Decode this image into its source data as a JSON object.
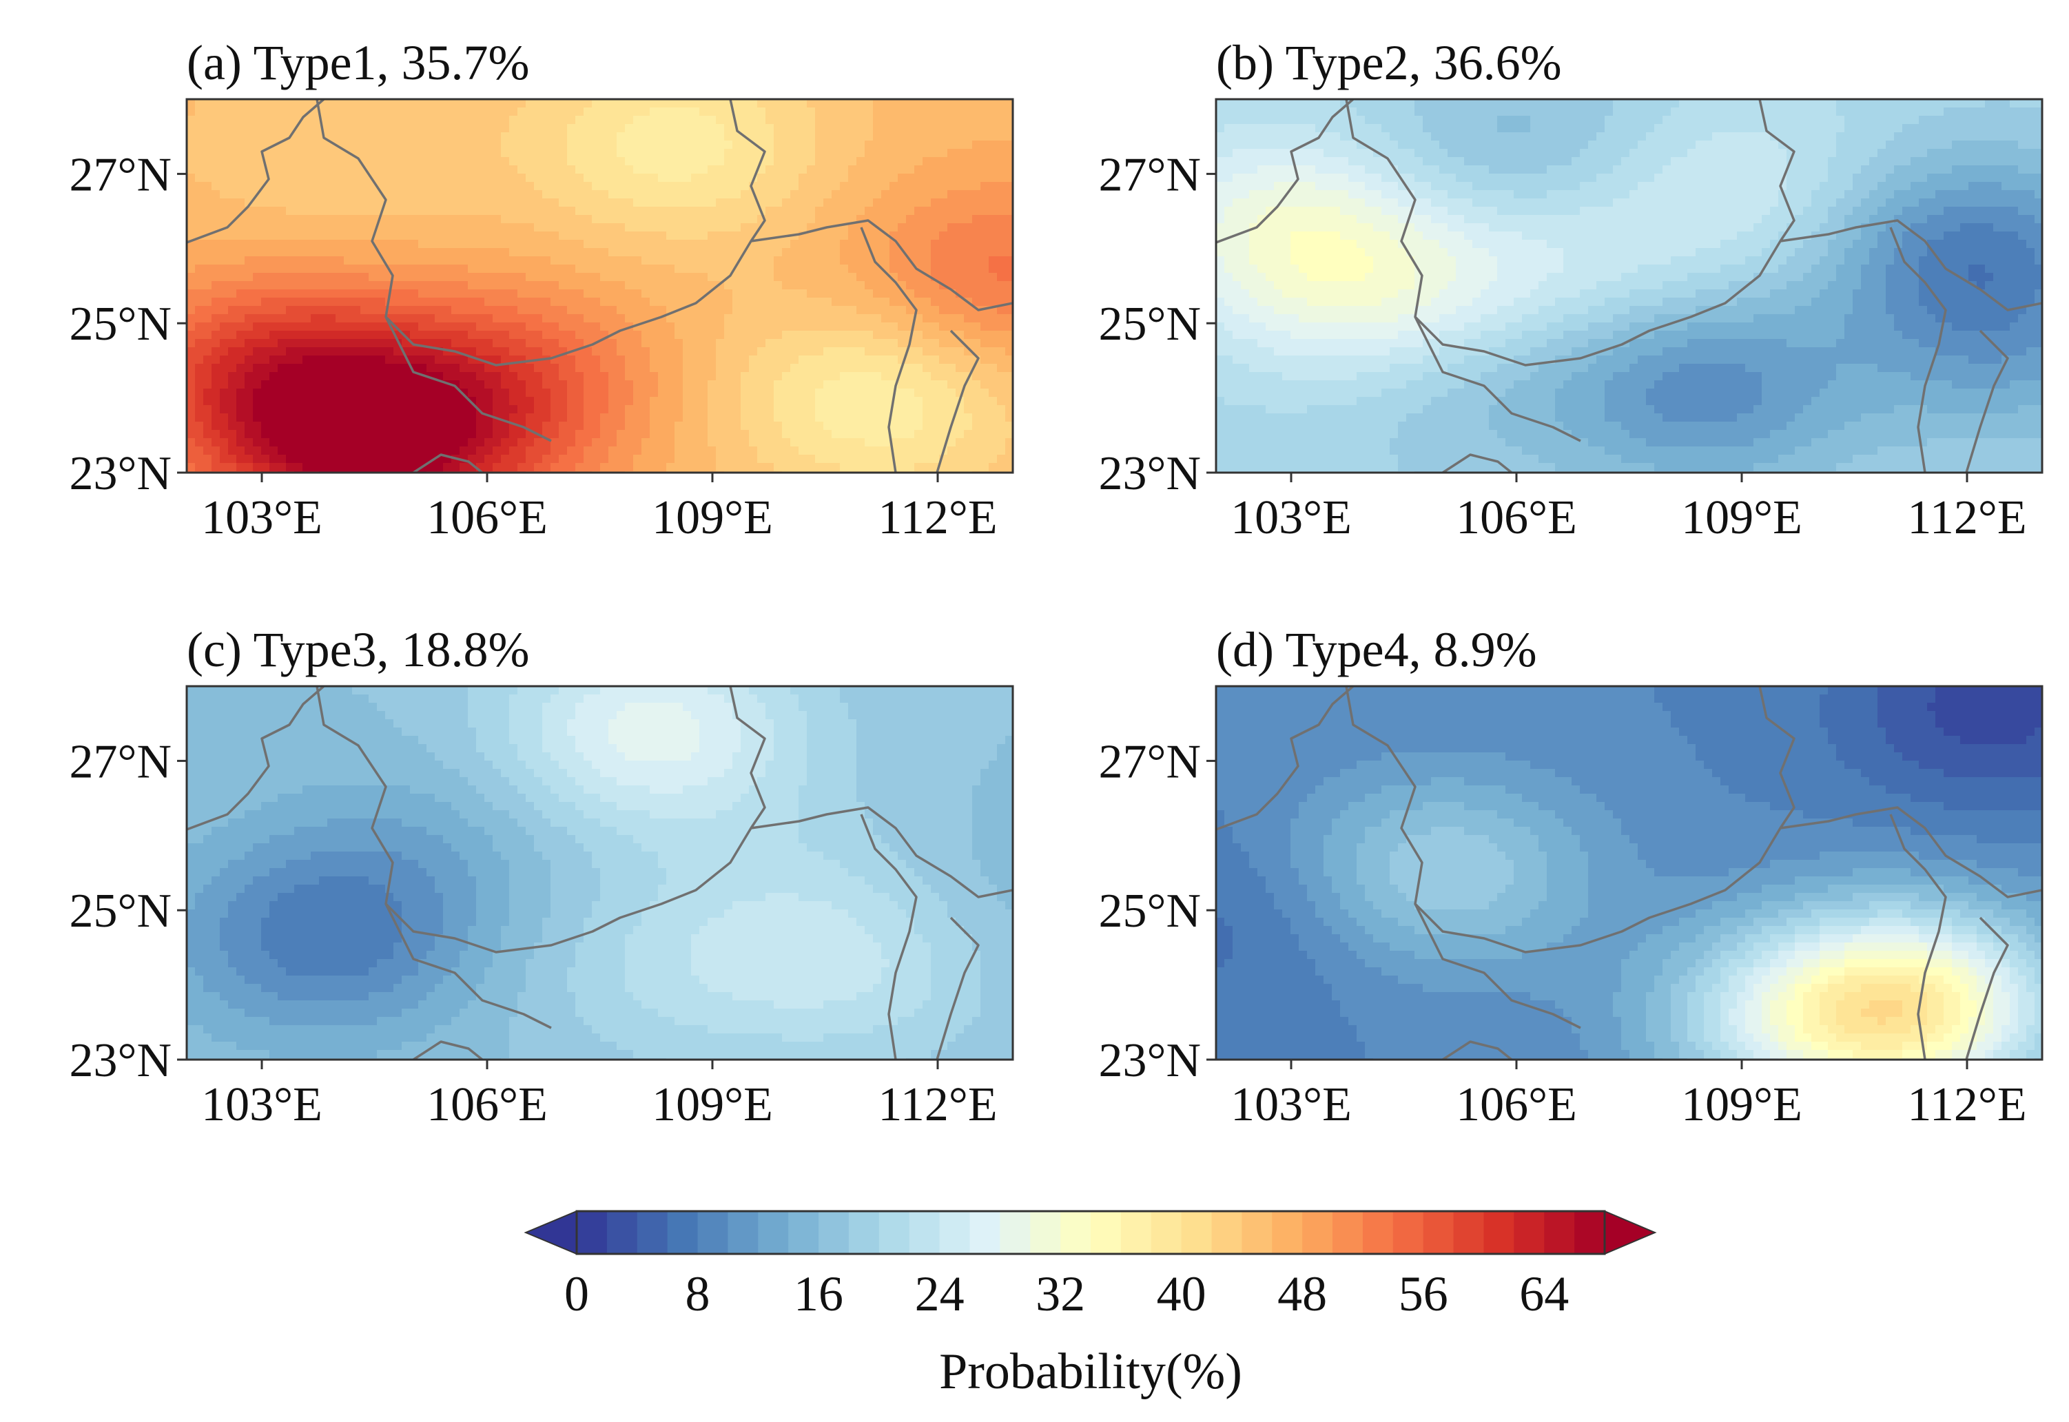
{
  "chart_data": [
    {
      "id": "a",
      "type": "heatmap",
      "title": "(a) Type1, 35.7%",
      "x_ticks": [
        "103°E",
        "106°E",
        "109°E",
        "112°E"
      ],
      "y_ticks": [
        "27°N",
        "25°N",
        "23°N"
      ],
      "lon_range": [
        102,
        113
      ],
      "lat_range": [
        23,
        28
      ],
      "base_value": 46,
      "blobs": [
        {
          "lon": 104.5,
          "lat": 23.3,
          "value": 19
        },
        {
          "lon": 103.2,
          "lat": 24.3,
          "value": 14
        },
        {
          "lon": 106.2,
          "lat": 24.2,
          "value": 10
        },
        {
          "lon": 108.5,
          "lat": 27.4,
          "value": -8
        },
        {
          "lon": 111.2,
          "lat": 24.0,
          "value": -9
        },
        {
          "lon": 112.8,
          "lat": 25.6,
          "value": 8
        },
        {
          "lon": 104.0,
          "lat": 27.3,
          "value": -3
        }
      ]
    },
    {
      "id": "b",
      "type": "heatmap",
      "title": "(b) Type2, 36.6%",
      "x_ticks": [
        "103°E",
        "106°E",
        "109°E",
        "112°E"
      ],
      "y_ticks": [
        "27°N",
        "25°N",
        "23°N"
      ],
      "lon_range": [
        102,
        113
      ],
      "lat_range": [
        23,
        28
      ],
      "base_value": 20,
      "blobs": [
        {
          "lon": 103.0,
          "lat": 26.3,
          "value": 10
        },
        {
          "lon": 104.3,
          "lat": 25.2,
          "value": 9
        },
        {
          "lon": 106.5,
          "lat": 26.0,
          "value": 6
        },
        {
          "lon": 109.0,
          "lat": 26.8,
          "value": 5
        },
        {
          "lon": 108.5,
          "lat": 24.1,
          "value": -10
        },
        {
          "lon": 112.0,
          "lat": 26.0,
          "value": -11
        },
        {
          "lon": 112.5,
          "lat": 24.6,
          "value": -6
        },
        {
          "lon": 106.0,
          "lat": 27.1,
          "value": -6
        },
        {
          "lon": 105.2,
          "lat": 24.4,
          "value": -5
        }
      ]
    },
    {
      "id": "c",
      "type": "heatmap",
      "title": "(c) Type3, 18.8%",
      "x_ticks": [
        "103°E",
        "106°E",
        "109°E",
        "112°E"
      ],
      "y_ticks": [
        "27°N",
        "25°N",
        "23°N"
      ],
      "lon_range": [
        102,
        113
      ],
      "lat_range": [
        23,
        28
      ],
      "base_value": 17,
      "blobs": [
        {
          "lon": 103.8,
          "lat": 24.6,
          "value": -9
        },
        {
          "lon": 105.0,
          "lat": 25.8,
          "value": -3
        },
        {
          "lon": 108.2,
          "lat": 27.4,
          "value": 11
        },
        {
          "lon": 111.0,
          "lat": 24.3,
          "value": 6
        },
        {
          "lon": 108.5,
          "lat": 24.2,
          "value": 4
        },
        {
          "lon": 110.0,
          "lat": 25.5,
          "value": 2
        },
        {
          "lon": 112.6,
          "lat": 25.0,
          "value": -2
        }
      ]
    },
    {
      "id": "d",
      "type": "heatmap",
      "title": "(d) Type4, 8.9%",
      "x_ticks": [
        "103°E",
        "106°E",
        "109°E",
        "112°E"
      ],
      "y_ticks": [
        "27°N",
        "25°N",
        "23°N"
      ],
      "lon_range": [
        102,
        113
      ],
      "lat_range": [
        23,
        28
      ],
      "base_value": 9,
      "blobs": [
        {
          "lon": 105.0,
          "lat": 25.5,
          "value": 10
        },
        {
          "lon": 111.2,
          "lat": 23.7,
          "value": 27
        },
        {
          "lon": 109.5,
          "lat": 23.5,
          "value": 10
        },
        {
          "lon": 112.3,
          "lat": 27.7,
          "value": -7
        },
        {
          "lon": 102.3,
          "lat": 24.8,
          "value": -3
        }
      ]
    }
  ],
  "colorbar": {
    "label": "Probability(%)",
    "ticks": [
      "0",
      "8",
      "16",
      "24",
      "32",
      "40",
      "48",
      "56",
      "64"
    ],
    "min": 0,
    "max": 68,
    "step": 2,
    "colors": [
      "#313695",
      "#4575b4",
      "#74add1",
      "#abd9e9",
      "#e0f3f8",
      "#ffffbf",
      "#fee090",
      "#fdae61",
      "#f46d43",
      "#d73027",
      "#a50026"
    ]
  }
}
